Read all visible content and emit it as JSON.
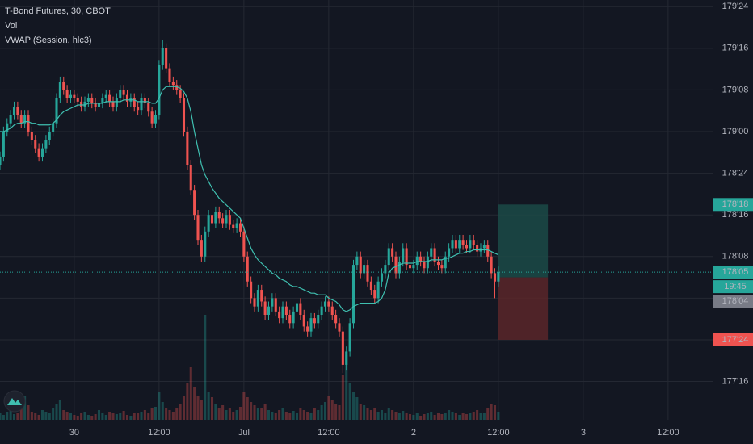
{
  "chart_data": {
    "type": "candlestick",
    "title": "T-Bond Futures, 30, CBOT",
    "x": [
      -10.5,
      -10,
      -9.5,
      -9,
      -8.5,
      -8,
      -7.5,
      -7,
      -6.5,
      -6,
      -5.5,
      -5,
      -4.5,
      -4,
      -3.5,
      -3,
      -2.5,
      -2,
      -1.5,
      -1,
      -0.5,
      0,
      0.5,
      1,
      1.5,
      2,
      2.5,
      3,
      3.5,
      4,
      4.5,
      5,
      5.5,
      6,
      6.5,
      7,
      7.5,
      8,
      8.5,
      9,
      9.5,
      10,
      10.5,
      11,
      11.5,
      12,
      12.5,
      13,
      13.5,
      14,
      14.5,
      15,
      15.5,
      16,
      16.5,
      17,
      17.5,
      18,
      18.5,
      19,
      19.5,
      20,
      20.5,
      21,
      21.5,
      22,
      22.5,
      23,
      23.5,
      24,
      24.5,
      25,
      25.5,
      26,
      26.5,
      27,
      27.5,
      28,
      28.5,
      29,
      29.5,
      30,
      30.5,
      31,
      31.5,
      32,
      32.5,
      33,
      33.5,
      34,
      34.5,
      35,
      35.5,
      36,
      36.5,
      37,
      37.5,
      38,
      38.5,
      39,
      39.5,
      40,
      40.5,
      41,
      41.5,
      42,
      42.5,
      43,
      43.5,
      44,
      44.5,
      45,
      45.5,
      46,
      46.5,
      47,
      47.5,
      48,
      48.5,
      49,
      49.5,
      50,
      50.5,
      51,
      51.5,
      52,
      52.5,
      53,
      53.5,
      54,
      54.5,
      55,
      55.5,
      56,
      56.5,
      57,
      57.5,
      58,
      58.5,
      59,
      59.5,
      60
    ],
    "open": [
      178.8,
      178.85,
      179.0,
      179.05,
      179.1,
      179.15,
      179.1,
      179.05,
      179.1,
      179.0,
      178.95,
      178.9,
      178.85,
      178.9,
      178.95,
      179.0,
      179.05,
      179.2,
      179.3,
      179.25,
      179.2,
      179.22,
      179.2,
      179.18,
      179.15,
      179.18,
      179.2,
      179.17,
      179.15,
      179.17,
      179.2,
      179.22,
      179.18,
      179.15,
      179.2,
      179.25,
      179.22,
      179.18,
      179.2,
      179.15,
      179.13,
      179.2,
      179.17,
      179.12,
      179.05,
      179.1,
      179.4,
      179.5,
      179.38,
      179.3,
      179.28,
      179.25,
      179.2,
      179.0,
      178.8,
      178.65,
      178.5,
      178.35,
      178.25,
      178.4,
      178.5,
      178.45,
      178.52,
      178.48,
      178.45,
      178.5,
      178.44,
      178.42,
      178.45,
      178.4,
      178.25,
      178.1,
      178.0,
      177.95,
      178.05,
      177.98,
      177.9,
      177.95,
      178.0,
      177.92,
      177.88,
      177.95,
      177.9,
      177.85,
      177.92,
      177.97,
      177.9,
      177.83,
      177.8,
      177.88,
      177.85,
      177.9,
      177.95,
      177.98,
      177.95,
      177.9,
      177.85,
      177.8,
      177.6,
      177.68,
      177.85,
      178.2,
      178.25,
      178.15,
      178.2,
      178.1,
      178.05,
      178.0,
      178.1,
      178.15,
      178.2,
      178.3,
      178.25,
      178.15,
      178.22,
      178.3,
      178.2,
      178.18,
      178.2,
      178.25,
      178.22,
      178.18,
      178.25,
      178.3,
      178.22,
      178.2,
      178.18,
      178.25,
      178.3,
      178.35,
      178.3,
      178.35,
      178.32,
      178.3,
      178.35,
      178.32,
      178.28,
      178.3,
      178.32,
      178.25,
      178.15,
      178.1
    ],
    "high": [
      178.88,
      179.03,
      179.08,
      179.13,
      179.18,
      179.18,
      179.13,
      179.13,
      179.13,
      179.03,
      178.98,
      178.93,
      178.93,
      178.98,
      179.03,
      179.08,
      179.23,
      179.33,
      179.33,
      179.28,
      179.25,
      179.25,
      179.23,
      179.21,
      179.21,
      179.23,
      179.23,
      179.2,
      179.2,
      179.23,
      179.25,
      179.25,
      179.21,
      179.23,
      179.28,
      179.28,
      179.25,
      179.23,
      179.23,
      179.18,
      179.23,
      179.23,
      179.2,
      179.15,
      179.13,
      179.43,
      179.55,
      179.53,
      179.41,
      179.33,
      179.31,
      179.28,
      179.23,
      179.03,
      178.83,
      178.68,
      178.53,
      178.38,
      178.43,
      178.53,
      178.53,
      178.55,
      178.55,
      178.51,
      178.53,
      178.53,
      178.47,
      178.48,
      178.48,
      178.43,
      178.28,
      178.13,
      178.03,
      178.08,
      178.08,
      178.01,
      177.98,
      178.03,
      178.03,
      177.95,
      177.98,
      177.98,
      177.93,
      177.95,
      178.0,
      178.0,
      177.93,
      177.86,
      177.91,
      177.91,
      177.93,
      177.98,
      178.01,
      178.01,
      177.98,
      177.93,
      177.88,
      177.83,
      177.71,
      177.88,
      178.23,
      178.28,
      178.28,
      178.23,
      178.23,
      178.13,
      178.08,
      178.13,
      178.18,
      178.23,
      178.33,
      178.33,
      178.28,
      178.25,
      178.33,
      178.33,
      178.23,
      178.23,
      178.28,
      178.28,
      178.25,
      178.28,
      178.33,
      178.33,
      178.25,
      178.23,
      178.28,
      178.33,
      178.38,
      178.38,
      178.38,
      178.38,
      178.35,
      178.38,
      178.38,
      178.35,
      178.33,
      178.35,
      178.35,
      178.28,
      178.18,
      178.19
    ],
    "low": [
      178.77,
      178.82,
      178.97,
      179.02,
      179.07,
      179.07,
      179.02,
      179.02,
      178.97,
      178.92,
      178.87,
      178.82,
      178.82,
      178.87,
      178.92,
      178.97,
      179.02,
      179.17,
      179.22,
      179.17,
      179.17,
      179.17,
      179.15,
      179.12,
      179.12,
      179.15,
      179.14,
      179.12,
      179.12,
      179.14,
      179.17,
      179.15,
      179.12,
      179.12,
      179.17,
      179.19,
      179.15,
      179.15,
      179.12,
      179.1,
      179.1,
      179.14,
      179.09,
      179.02,
      179.02,
      179.07,
      179.37,
      179.35,
      179.27,
      179.25,
      179.22,
      179.17,
      178.97,
      178.77,
      178.62,
      178.47,
      178.32,
      178.22,
      178.22,
      178.37,
      178.42,
      178.42,
      178.45,
      178.42,
      178.42,
      178.41,
      178.39,
      178.39,
      178.37,
      178.22,
      178.07,
      177.97,
      177.92,
      177.92,
      177.95,
      177.87,
      177.87,
      177.92,
      177.89,
      177.85,
      177.85,
      177.87,
      177.82,
      177.82,
      177.89,
      177.87,
      177.8,
      177.77,
      177.77,
      177.82,
      177.82,
      177.87,
      177.92,
      177.92,
      177.87,
      177.82,
      177.77,
      177.55,
      177.57,
      177.65,
      177.82,
      178.17,
      178.12,
      178.12,
      178.07,
      178.02,
      177.97,
      177.97,
      178.07,
      178.12,
      178.17,
      178.22,
      178.12,
      178.12,
      178.19,
      178.17,
      178.15,
      178.15,
      178.17,
      178.19,
      178.15,
      178.15,
      178.22,
      178.19,
      178.17,
      178.15,
      178.15,
      178.22,
      178.27,
      178.27,
      178.27,
      178.29,
      178.27,
      178.27,
      178.29,
      178.25,
      178.25,
      178.27,
      178.22,
      178.12,
      178.0,
      178.07
    ],
    "close": [
      178.85,
      179.0,
      179.05,
      179.1,
      179.15,
      179.1,
      179.05,
      179.1,
      179.0,
      178.95,
      178.9,
      178.85,
      178.9,
      178.95,
      179.0,
      179.05,
      179.2,
      179.3,
      179.25,
      179.2,
      179.22,
      179.2,
      179.18,
      179.15,
      179.18,
      179.2,
      179.17,
      179.15,
      179.17,
      179.2,
      179.22,
      179.18,
      179.15,
      179.2,
      179.25,
      179.22,
      179.18,
      179.2,
      179.15,
      179.13,
      179.2,
      179.17,
      179.12,
      179.05,
      179.1,
      179.4,
      179.5,
      179.38,
      179.3,
      179.28,
      179.25,
      179.2,
      179.0,
      178.8,
      178.65,
      178.5,
      178.35,
      178.25,
      178.4,
      178.5,
      178.45,
      178.52,
      178.48,
      178.45,
      178.5,
      178.44,
      178.42,
      178.45,
      178.4,
      178.25,
      178.1,
      178.0,
      177.95,
      178.05,
      177.98,
      177.9,
      177.95,
      178.0,
      177.92,
      177.88,
      177.95,
      177.9,
      177.85,
      177.92,
      177.97,
      177.9,
      177.83,
      177.8,
      177.88,
      177.85,
      177.9,
      177.95,
      177.98,
      177.95,
      177.9,
      177.85,
      177.8,
      177.6,
      177.68,
      177.85,
      178.2,
      178.25,
      178.15,
      178.2,
      178.1,
      178.05,
      178.0,
      178.1,
      178.15,
      178.2,
      178.3,
      178.25,
      178.15,
      178.22,
      178.3,
      178.2,
      178.18,
      178.2,
      178.25,
      178.22,
      178.18,
      178.25,
      178.3,
      178.22,
      178.2,
      178.18,
      178.25,
      178.3,
      178.35,
      178.3,
      178.35,
      178.32,
      178.3,
      178.35,
      178.32,
      178.28,
      178.3,
      178.32,
      178.25,
      178.15,
      178.1,
      178.156
    ],
    "up_color": "#26a69a",
    "down_color": "#ef5350",
    "volume": {
      "name": "Vol",
      "values": [
        8,
        6,
        10,
        12,
        7,
        9,
        15,
        30,
        18,
        10,
        8,
        6,
        12,
        10,
        8,
        14,
        20,
        25,
        12,
        10,
        8,
        6,
        5,
        8,
        10,
        6,
        5,
        7,
        12,
        8,
        6,
        10,
        9,
        7,
        8,
        11,
        6,
        5,
        9,
        8,
        10,
        12,
        8,
        14,
        16,
        35,
        22,
        15,
        12,
        10,
        14,
        20,
        30,
        45,
        65,
        40,
        30,
        25,
        130,
        35,
        28,
        20,
        15,
        18,
        12,
        14,
        10,
        12,
        16,
        35,
        28,
        22,
        18,
        15,
        14,
        20,
        12,
        10,
        8,
        12,
        14,
        10,
        9,
        11,
        8,
        15,
        12,
        10,
        8,
        14,
        12,
        18,
        22,
        30,
        25,
        20,
        18,
        55,
        80,
        45,
        35,
        28,
        20,
        18,
        15,
        12,
        14,
        10,
        12,
        9,
        15,
        12,
        10,
        8,
        11,
        9,
        7,
        6,
        8,
        5,
        7,
        9,
        10,
        6,
        8,
        7,
        9,
        12,
        10,
        8,
        6,
        9,
        7,
        8,
        10,
        12,
        9,
        8,
        15,
        20,
        18,
        10
      ]
    },
    "vwap": {
      "name": "VWAP (Session, hlc3)",
      "color": "#3fbfb0",
      "values": [
        179.0,
        179.0,
        179.01,
        179.02,
        179.04,
        179.05,
        179.05,
        179.06,
        179.06,
        179.05,
        179.05,
        179.04,
        179.04,
        179.04,
        179.04,
        179.05,
        179.07,
        179.1,
        179.12,
        179.13,
        179.14,
        179.15,
        179.16,
        179.16,
        179.16,
        179.17,
        179.17,
        179.17,
        179.17,
        179.17,
        179.18,
        179.18,
        179.18,
        179.18,
        179.18,
        179.19,
        179.19,
        179.19,
        179.19,
        179.18,
        179.18,
        179.18,
        179.18,
        179.17,
        179.17,
        179.2,
        179.25,
        179.27,
        179.27,
        179.27,
        179.27,
        179.26,
        179.24,
        179.2,
        179.12,
        179.0,
        178.9,
        178.8,
        178.74,
        178.7,
        178.66,
        178.63,
        178.6,
        178.58,
        178.56,
        178.54,
        178.52,
        178.5,
        178.48,
        178.42,
        178.36,
        178.3,
        178.26,
        178.23,
        178.21,
        178.19,
        178.17,
        178.15,
        178.14,
        178.12,
        178.11,
        178.1,
        178.08,
        178.07,
        178.07,
        178.06,
        178.05,
        178.04,
        178.03,
        178.03,
        178.02,
        178.02,
        178.02,
        178.0,
        177.99,
        177.98,
        177.96,
        177.93,
        177.92,
        177.93,
        177.95,
        177.96,
        177.97,
        177.97,
        177.97,
        177.97,
        177.97,
        177.98,
        178.0,
        178.05,
        178.15,
        178.18,
        178.19,
        178.2,
        178.21,
        178.21,
        178.21,
        178.21,
        178.22,
        178.22,
        178.22,
        178.22,
        178.23,
        178.23,
        178.23,
        178.23,
        178.24,
        178.24,
        178.25,
        178.26,
        178.27,
        178.27,
        178.28,
        178.28,
        178.29,
        178.29,
        178.29,
        178.29,
        178.29,
        178.28,
        178.27,
        178.26
      ]
    },
    "xlim": [
      -10.5,
      90.3
    ],
    "xticks": [
      {
        "value": 0,
        "label": "30"
      },
      {
        "value": 12,
        "label": "12:00"
      },
      {
        "value": 24,
        "label": "Jul"
      },
      {
        "value": 36,
        "label": "12:00"
      },
      {
        "value": 48,
        "label": "2"
      },
      {
        "value": 60,
        "label": "12:00"
      },
      {
        "value": 72,
        "label": "3"
      },
      {
        "value": 84,
        "label": "12:00"
      }
    ],
    "ylim": [
      177.27,
      179.79
    ],
    "yticks": [
      {
        "value": 179.75,
        "label": "179'24"
      },
      {
        "value": 179.5,
        "label": "179'16"
      },
      {
        "value": 179.25,
        "label": "179'08"
      },
      {
        "value": 179.0,
        "label": "179'00"
      },
      {
        "value": 178.75,
        "label": "178'24"
      },
      {
        "value": 178.5,
        "label": "178'16"
      },
      {
        "value": 178.25,
        "label": "178'08"
      },
      {
        "value": 178.0,
        "label": "178'00"
      },
      {
        "value": 177.75,
        "label": "177'24"
      },
      {
        "value": 177.5,
        "label": "177'16"
      }
    ],
    "grid": true,
    "last_price": {
      "value": 178.15625,
      "label": "178'05"
    },
    "countdown": "19:45",
    "position": {
      "x": [
        60,
        67
      ],
      "entry": {
        "value": 178.125,
        "label": "178'04"
      },
      "target": {
        "value": 178.5625,
        "label": "178'18"
      },
      "stop": {
        "value": 177.75,
        "label": "177'24"
      },
      "profit_color": "#1b4a47",
      "loss_color": "#5a2629"
    }
  }
}
